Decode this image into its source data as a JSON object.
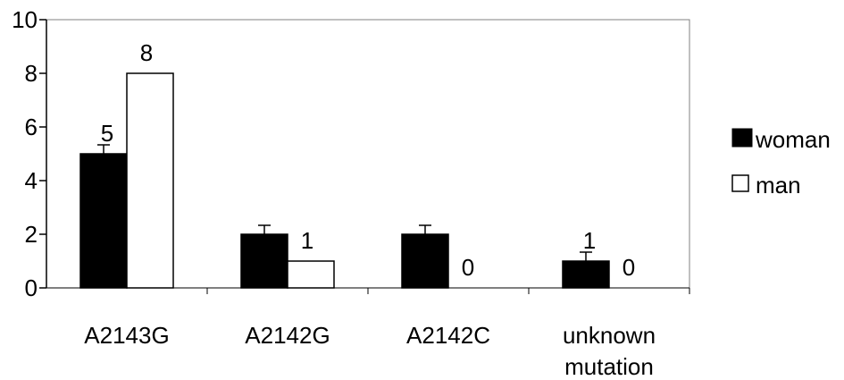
{
  "chart_data": {
    "type": "bar",
    "categories": [
      [
        "A2143G"
      ],
      [
        "A2142G"
      ],
      [
        "A2142C"
      ],
      [
        "unknown",
        "mutation"
      ]
    ],
    "series": [
      {
        "name": "woman",
        "values": [
          5,
          2,
          2,
          1
        ],
        "data_labels": [
          "5",
          "",
          "",
          "1"
        ],
        "error_bars": true,
        "color": "#000000"
      },
      {
        "name": "man",
        "values": [
          8,
          1,
          0,
          0
        ],
        "data_labels": [
          "8",
          "1",
          "0",
          "0"
        ],
        "error_bars": false,
        "color": "#ffffff"
      }
    ],
    "yticks": [
      "0",
      "2",
      "4",
      "6",
      "8",
      "10"
    ],
    "ylim": [
      0,
      10
    ],
    "grid": false,
    "legend_position": "right"
  }
}
